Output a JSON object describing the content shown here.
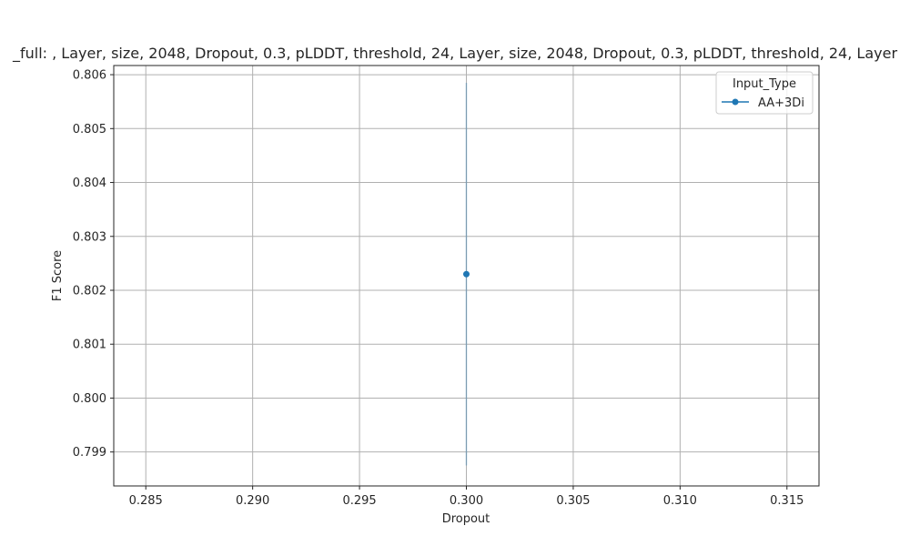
{
  "chart_data": {
    "type": "line",
    "title": "_full: , Layer, size, 2048, Dropout, 0.3, pLDDT, threshold, 24, Layer, size, 2048, Dropout, 0.3, pLDDT, threshold, 24, Layer",
    "xlabel": "Dropout",
    "ylabel": "F1 Score",
    "xlim": [
      0.2835,
      0.3165
    ],
    "ylim": [
      0.79837,
      0.80617
    ],
    "x_ticks": [
      "0.285",
      "0.290",
      "0.295",
      "0.300",
      "0.305",
      "0.310",
      "0.315"
    ],
    "y_ticks": [
      "0.799",
      "0.800",
      "0.801",
      "0.802",
      "0.803",
      "0.804",
      "0.805",
      "0.806"
    ],
    "grid": true,
    "legend": {
      "title": "Input_Type",
      "placement": "top-right"
    },
    "series": [
      {
        "name": "AA+3Di",
        "color": "#1f77b4",
        "x": [
          0.3
        ],
        "y": [
          0.8023
        ],
        "error_band": {
          "x": 0.3,
          "low": 0.79875,
          "high": 0.80585
        }
      }
    ]
  }
}
